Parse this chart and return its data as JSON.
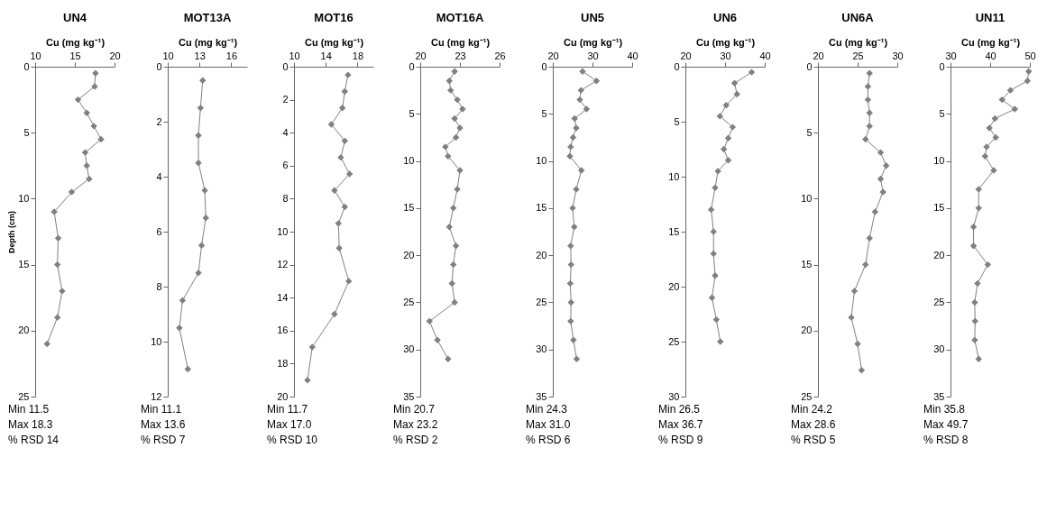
{
  "chart_data": [
    {
      "type": "line",
      "title": "UN4",
      "xlabel": "Cu (mg kg⁻¹)",
      "ylabel": "Depth (cm)",
      "xlim": [
        10,
        20
      ],
      "xticks": [
        10,
        15,
        20
      ],
      "ylim": [
        25,
        0
      ],
      "yticks": [
        0,
        5,
        10,
        15,
        20,
        25
      ],
      "grid": false,
      "marker": "diamond",
      "annotations": [
        "Min 11.5",
        "Max 18.3",
        "% RSD 14"
      ],
      "series": [
        {
          "color": "#808080",
          "x": [
            17.6,
            17.5,
            15.4,
            16.5,
            17.4,
            18.3,
            16.3,
            16.5,
            16.8,
            14.6,
            12.4,
            12.9,
            12.8,
            13.4,
            12.8,
            11.5
          ],
          "values": [
            0.5,
            1.5,
            2.5,
            3.5,
            4.5,
            5.5,
            6.5,
            7.5,
            8.5,
            9.5,
            11,
            13,
            15,
            17,
            19,
            21
          ]
        }
      ]
    },
    {
      "type": "line",
      "title": "MOT13A",
      "xlabel": "Cu (mg kg⁻¹)",
      "xlim": [
        10,
        17.5
      ],
      "xticks": [
        10,
        13,
        16
      ],
      "ylim": [
        12,
        0
      ],
      "yticks": [
        0,
        2,
        4,
        6,
        8,
        10,
        12
      ],
      "grid": false,
      "marker": "diamond",
      "annotations": [
        "Min 11.1",
        "Max 13.6",
        "% RSD 7"
      ],
      "series": [
        {
          "color": "#808080",
          "x": [
            13.3,
            13.1,
            12.9,
            12.9,
            13.5,
            13.6,
            13.2,
            12.9,
            11.4,
            11.1,
            11.9
          ],
          "values": [
            0.5,
            1.5,
            2.5,
            3.5,
            4.5,
            5.5,
            6.5,
            7.5,
            8.5,
            9.5,
            11
          ]
        }
      ]
    },
    {
      "type": "line",
      "title": "MOT16",
      "xlabel": "Cu (mg kg⁻¹)",
      "xlim": [
        10,
        20
      ],
      "xticks": [
        10,
        14,
        18
      ],
      "ylim": [
        20,
        0
      ],
      "yticks": [
        0,
        2,
        4,
        6,
        8,
        10,
        12,
        14,
        16,
        18,
        20
      ],
      "grid": false,
      "marker": "diamond",
      "annotations": [
        "Min 11.7",
        "Max 17.0",
        "% RSD 10"
      ],
      "series": [
        {
          "color": "#808080",
          "x": [
            16.8,
            16.4,
            16.1,
            14.7,
            16.4,
            15.9,
            17.0,
            15.1,
            16.4,
            15.6,
            15.7,
            16.9,
            15.1,
            12.3,
            11.7
          ],
          "values": [
            0.5,
            1.5,
            2.5,
            3.5,
            4.5,
            5.5,
            6.5,
            7.5,
            8.5,
            9.5,
            11,
            13,
            15,
            17,
            19
          ]
        }
      ]
    },
    {
      "type": "line",
      "title": "MOT16A",
      "xlabel": "Cu (mg kg⁻¹)",
      "xlim": [
        20,
        26
      ],
      "xticks": [
        20,
        23,
        26
      ],
      "ylim": [
        35,
        0
      ],
      "yticks": [
        0,
        5,
        10,
        15,
        20,
        25,
        30,
        35
      ],
      "grid": false,
      "marker": "diamond",
      "annotations": [
        "Min 20.7",
        "Max 23.2",
        "% RSD 2"
      ],
      "series": [
        {
          "color": "#808080",
          "x": [
            22.6,
            22.2,
            22.3,
            22.8,
            23.2,
            22.6,
            23.0,
            22.7,
            21.9,
            22.1,
            23.0,
            22.8,
            22.5,
            22.2,
            22.7,
            22.5,
            22.4,
            22.6,
            20.7,
            21.3,
            22.1
          ],
          "values": [
            0.5,
            1.5,
            2.5,
            3.5,
            4.5,
            5.5,
            6.5,
            7.5,
            8.5,
            9.5,
            11,
            13,
            15,
            17,
            19,
            21,
            23,
            25,
            27,
            29,
            31
          ]
        }
      ]
    },
    {
      "type": "line",
      "title": "UN5",
      "xlabel": "Cu (mg kg⁻¹)",
      "xlim": [
        20,
        40
      ],
      "xticks": [
        20,
        30,
        40
      ],
      "ylim": [
        35,
        0
      ],
      "yticks": [
        0,
        5,
        10,
        15,
        20,
        25,
        30,
        35
      ],
      "grid": false,
      "marker": "diamond",
      "annotations": [
        "Min 24.3",
        "Max 31.0",
        "% RSD 6"
      ],
      "series": [
        {
          "color": "#808080",
          "x": [
            27.5,
            31.0,
            27.1,
            26.8,
            28.5,
            25.5,
            25.9,
            25.1,
            24.5,
            24.3,
            27.2,
            25.9,
            25.0,
            25.4,
            24.5,
            24.6,
            24.4,
            24.6,
            24.5,
            25.2,
            26.0
          ],
          "values": [
            0.5,
            1.5,
            2.5,
            3.5,
            4.5,
            5.5,
            6.5,
            7.5,
            8.5,
            9.5,
            11,
            13,
            15,
            17,
            19,
            21,
            23,
            25,
            27,
            29,
            31
          ]
        }
      ]
    },
    {
      "type": "line",
      "title": "UN6",
      "xlabel": "Cu (mg kg⁻¹)",
      "xlim": [
        20,
        40
      ],
      "xticks": [
        20,
        30,
        40
      ],
      "ylim": [
        30,
        0
      ],
      "yticks": [
        0,
        5,
        10,
        15,
        20,
        25,
        30
      ],
      "grid": false,
      "marker": "diamond",
      "annotations": [
        "Min 26.5",
        "Max 36.7",
        "% RSD 9"
      ],
      "series": [
        {
          "color": "#808080",
          "x": [
            36.7,
            32.4,
            33.0,
            30.3,
            28.7,
            31.9,
            30.8,
            29.7,
            30.8,
            28.2,
            27.5,
            26.5,
            27.1,
            27.1,
            27.5,
            26.7,
            27.8,
            28.8
          ],
          "values": [
            0.5,
            1.5,
            2.5,
            3.5,
            4.5,
            5.5,
            6.5,
            7.5,
            8.5,
            9.5,
            11,
            13,
            15,
            17,
            19,
            21,
            23,
            25
          ]
        }
      ]
    },
    {
      "type": "line",
      "title": "UN6A",
      "xlabel": "Cu (mg kg⁻¹)",
      "xlim": [
        20,
        30
      ],
      "xticks": [
        20,
        25,
        30
      ],
      "ylim": [
        25,
        0
      ],
      "yticks": [
        0,
        5,
        10,
        15,
        20,
        25
      ],
      "grid": false,
      "marker": "diamond",
      "annotations": [
        "Min 24.2",
        "Max 28.6",
        "% RSD 5"
      ],
      "series": [
        {
          "color": "#808080",
          "x": [
            26.5,
            26.3,
            26.3,
            26.5,
            26.5,
            26.0,
            27.9,
            28.6,
            27.9,
            28.2,
            27.2,
            26.5,
            26.0,
            24.6,
            24.2,
            25.0,
            25.5
          ],
          "values": [
            0.5,
            1.5,
            2.5,
            3.5,
            4.5,
            5.5,
            6.5,
            7.5,
            8.5,
            9.5,
            11,
            13,
            15,
            17,
            19,
            21,
            23
          ]
        }
      ]
    },
    {
      "type": "line",
      "title": "UN11",
      "xlabel": "Cu (mg kg⁻¹)",
      "xlim": [
        30,
        50
      ],
      "xticks": [
        30,
        40,
        50
      ],
      "ylim": [
        35,
        0
      ],
      "yticks": [
        0,
        5,
        10,
        15,
        20,
        25,
        30,
        35
      ],
      "grid": false,
      "marker": "diamond",
      "annotations": [
        "Min 35.8",
        "Max 49.7",
        "% RSD 8"
      ],
      "series": [
        {
          "color": "#808080",
          "x": [
            49.7,
            49.4,
            45.1,
            43.0,
            46.2,
            41.2,
            39.8,
            41.4,
            39.1,
            38.7,
            40.9,
            37.1,
            37.1,
            35.8,
            35.8,
            39.4,
            36.8,
            36.1,
            36.2,
            36.1,
            37.1
          ],
          "values": [
            0.5,
            1.5,
            2.5,
            3.5,
            4.5,
            5.5,
            6.5,
            7.5,
            8.5,
            9.5,
            11,
            13,
            15,
            17,
            19,
            21,
            23,
            25,
            27,
            29,
            31
          ]
        }
      ]
    }
  ]
}
